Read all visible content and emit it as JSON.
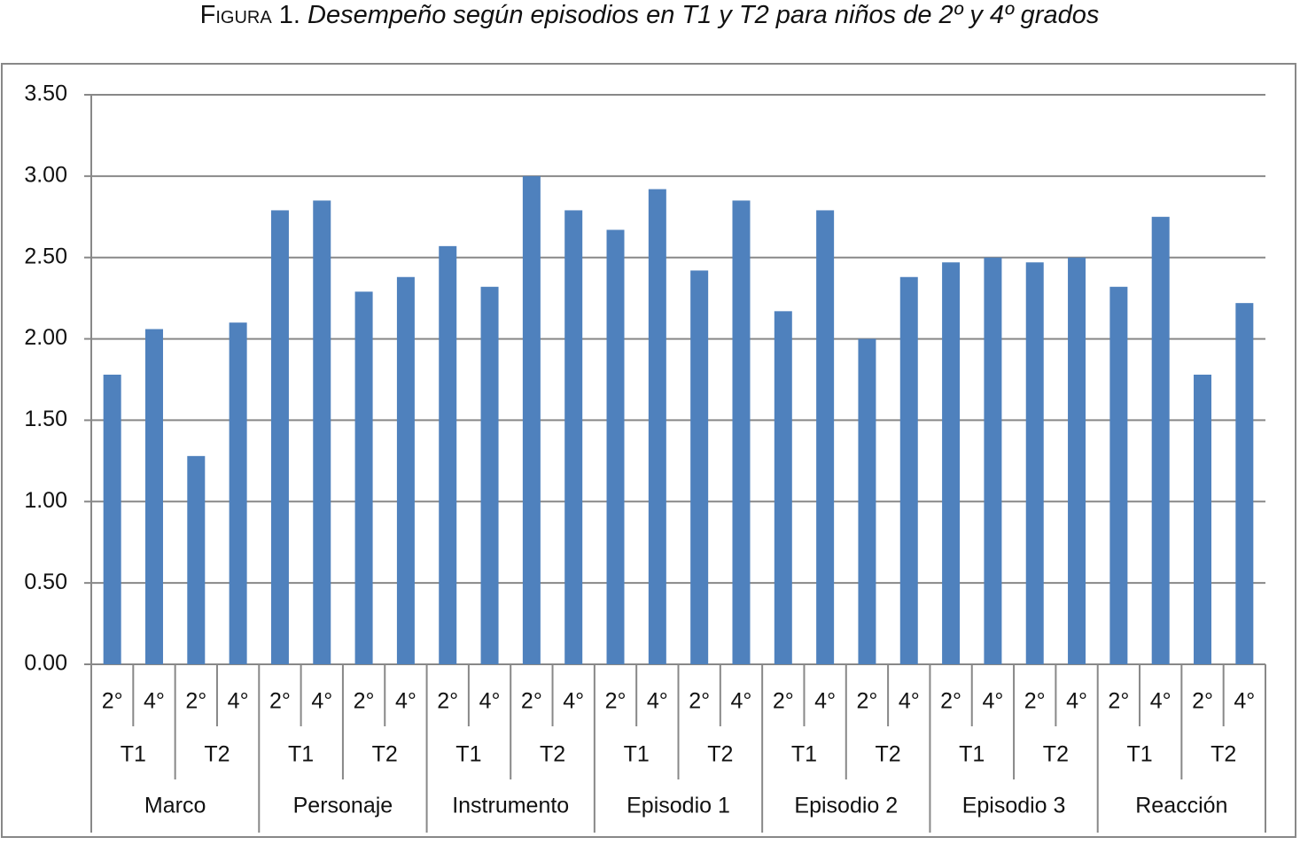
{
  "chart_data": {
    "type": "bar",
    "figure_label": "Figura 1.",
    "title": "Desempeño según episodios en T1 y T2 para niños de 2º y 4º grados",
    "categories": [
      "2°",
      "4°",
      "2°",
      "4°",
      "2°",
      "4°",
      "2°",
      "4°",
      "2°",
      "4°",
      "2°",
      "4°",
      "2°",
      "4°",
      "2°",
      "4°",
      "2°",
      "4°",
      "2°",
      "4°",
      "2°",
      "4°",
      "2°",
      "4°",
      "2°",
      "4°",
      "2°",
      "4°"
    ],
    "categories_level2": [
      "T1",
      "T2",
      "T1",
      "T2",
      "T1",
      "T2",
      "T1",
      "T2",
      "T1",
      "T2",
      "T1",
      "T2",
      "T1",
      "T2"
    ],
    "categories_level3": [
      "Marco",
      "Personaje",
      "Instrumento",
      "Episodio 1",
      "Episodio 2",
      "Episodio 3",
      "Reacción"
    ],
    "values": [
      1.78,
      2.06,
      1.28,
      2.1,
      2.79,
      2.85,
      2.29,
      2.38,
      2.57,
      2.32,
      3.0,
      2.79,
      2.67,
      2.92,
      2.42,
      2.85,
      2.17,
      2.79,
      2.0,
      2.38,
      2.47,
      2.5,
      2.47,
      2.5,
      2.32,
      2.75,
      1.78,
      2.22
    ],
    "color": "#4f81bd",
    "ylim": [
      0,
      3.5
    ],
    "yticks": [
      {
        "value": 0,
        "label": "0.00"
      },
      {
        "value": 0.5,
        "label": "0.50"
      },
      {
        "value": 1,
        "label": "1.00"
      },
      {
        "value": 1.5,
        "label": "1.50"
      },
      {
        "value": 2,
        "label": "2.00"
      },
      {
        "value": 2.5,
        "label": "2.50"
      },
      {
        "value": 3,
        "label": "3.00"
      },
      {
        "value": 3.5,
        "label": "3.50"
      }
    ],
    "grid": true
  }
}
